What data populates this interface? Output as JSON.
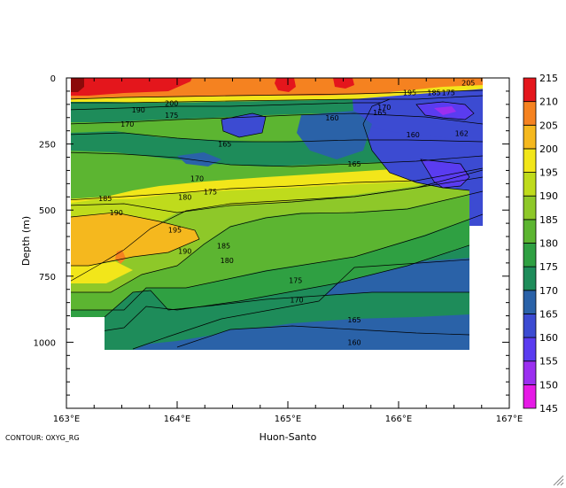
{
  "chart_data": {
    "type": "heatmap",
    "title": "",
    "xlabel": "Huon-Santo",
    "ylabel": "Depth  (m)",
    "footnote": "CONTOUR: OXYG_RG",
    "xlim": [
      163,
      167
    ],
    "ylim": [
      1250,
      0
    ],
    "x_ticks": [
      163,
      164,
      165,
      166,
      167
    ],
    "x_tick_labels": [
      "163°E",
      "164°E",
      "165°E",
      "166°E",
      "167°E"
    ],
    "y_ticks": [
      0,
      250,
      500,
      750,
      1000
    ],
    "y_tick_labels": [
      "0",
      "250",
      "500",
      "750",
      "1000"
    ],
    "colorbar": {
      "levels": [
        145,
        150,
        155,
        160,
        165,
        170,
        175,
        180,
        185,
        190,
        195,
        200,
        205,
        210,
        215
      ],
      "labels": [
        "145",
        "150",
        "155",
        "160",
        "165",
        "170",
        "175",
        "180",
        "185",
        "190",
        "195",
        "200",
        "205",
        "210",
        "215"
      ],
      "colors": [
        "#e61ae6",
        "#9b2ff0",
        "#5a3cf0",
        "#3c4bd2",
        "#2a62a8",
        "#1e8c5a",
        "#2fa042",
        "#5cb531",
        "#8ec829",
        "#bfdb1c",
        "#f2e61a",
        "#f5b81e",
        "#f58220",
        "#e4161c",
        "#8c0a0a"
      ]
    },
    "contour_labels": [
      {
        "text": "205",
        "lon": 166.63,
        "depth": 18
      },
      {
        "text": "195",
        "lon": 166.1,
        "depth": 55
      },
      {
        "text": "185",
        "lon": 166.32,
        "depth": 55
      },
      {
        "text": "175",
        "lon": 166.45,
        "depth": 55
      },
      {
        "text": "200",
        "lon": 163.95,
        "depth": 95
      },
      {
        "text": "175",
        "lon": 163.95,
        "depth": 140
      },
      {
        "text": "190",
        "lon": 163.65,
        "depth": 120
      },
      {
        "text": "170",
        "lon": 163.55,
        "depth": 175
      },
      {
        "text": "160",
        "lon": 165.4,
        "depth": 150
      },
      {
        "text": "170",
        "lon": 165.87,
        "depth": 110
      },
      {
        "text": "165",
        "lon": 165.83,
        "depth": 130
      },
      {
        "text": "165",
        "lon": 164.43,
        "depth": 250
      },
      {
        "text": "160",
        "lon": 166.13,
        "depth": 215
      },
      {
        "text": "162",
        "lon": 166.57,
        "depth": 210
      },
      {
        "text": "165",
        "lon": 165.6,
        "depth": 325
      },
      {
        "text": "170",
        "lon": 164.18,
        "depth": 380
      },
      {
        "text": "175",
        "lon": 164.3,
        "depth": 430
      },
      {
        "text": "180",
        "lon": 164.07,
        "depth": 450
      },
      {
        "text": "185",
        "lon": 163.35,
        "depth": 455
      },
      {
        "text": "190",
        "lon": 163.45,
        "depth": 510
      },
      {
        "text": "195",
        "lon": 163.98,
        "depth": 575
      },
      {
        "text": "190",
        "lon": 164.07,
        "depth": 655
      },
      {
        "text": "185",
        "lon": 164.42,
        "depth": 635
      },
      {
        "text": "180",
        "lon": 164.45,
        "depth": 690
      },
      {
        "text": "175",
        "lon": 165.07,
        "depth": 765
      },
      {
        "text": "170",
        "lon": 165.08,
        "depth": 840
      },
      {
        "text": "165",
        "lon": 165.6,
        "depth": 915
      },
      {
        "text": "160",
        "lon": 165.6,
        "depth": 1000
      }
    ]
  }
}
